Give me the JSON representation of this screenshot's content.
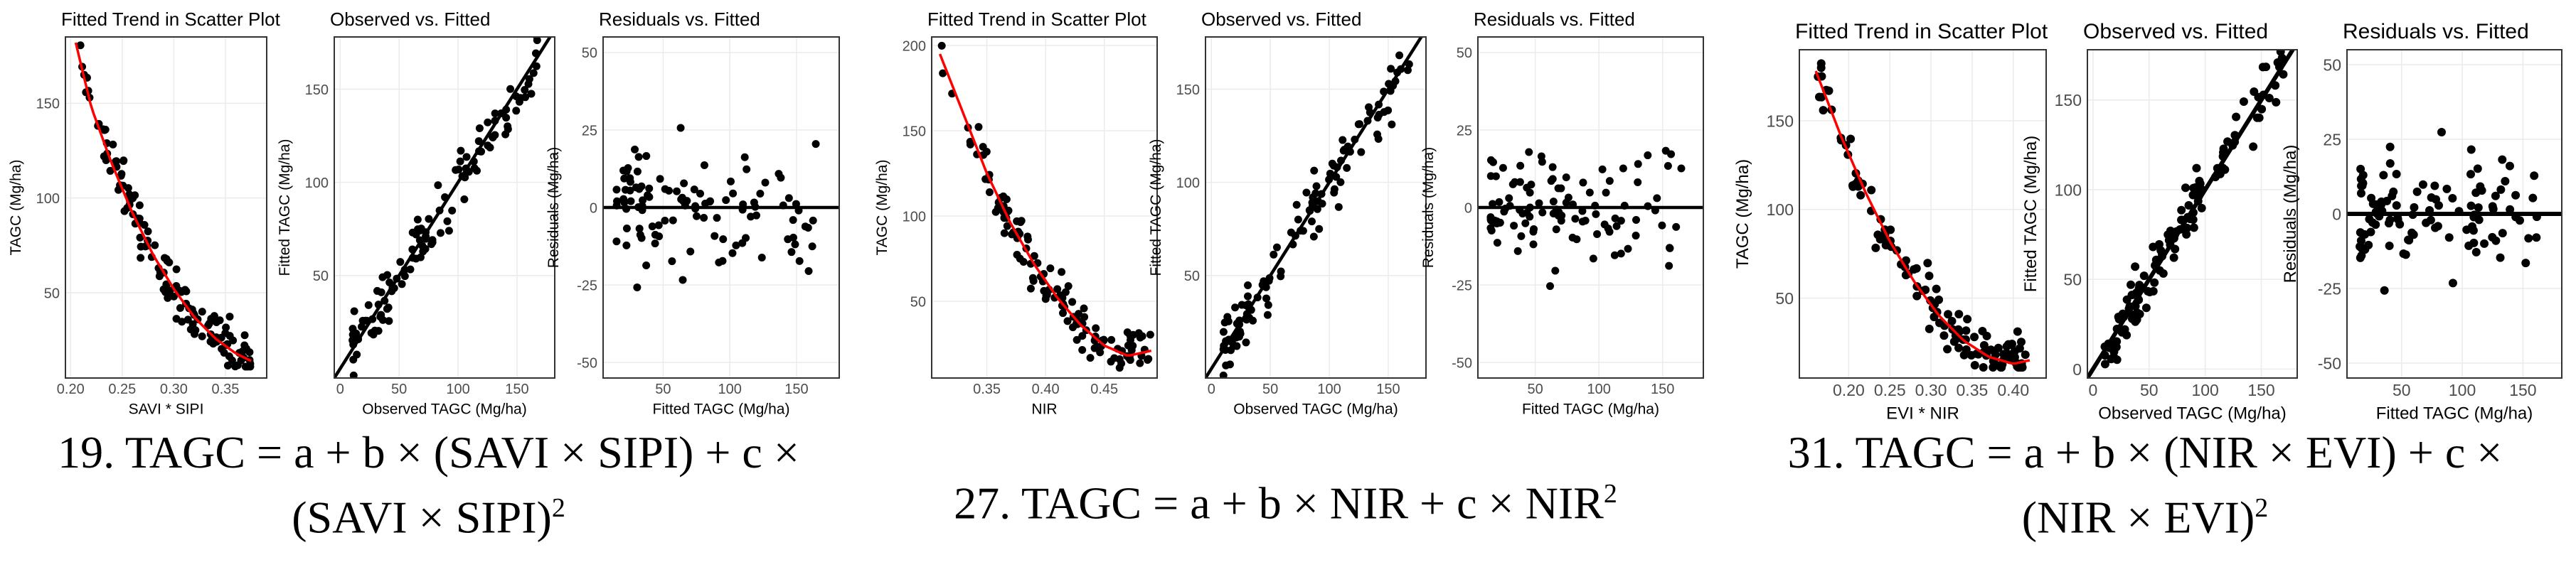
{
  "colors": {
    "points": "#000000",
    "fit_line": "#ff0000",
    "ref_line": "#000000",
    "grid": "#ebebeb",
    "panel_border": "#333333",
    "text": "#000000",
    "tick_text": "#4d4d4d",
    "background": "#ffffff"
  },
  "chart_data": [
    {
      "type": "scatter",
      "title": "Fitted Trend in Scatter Plot",
      "xlabel": "SAVI * SIPI",
      "ylabel": "TAGC (Mg/ha)",
      "xlim": [
        0.195,
        0.39
      ],
      "ylim": [
        5,
        185
      ],
      "xticks": [
        0.2,
        0.25,
        0.3,
        0.35
      ],
      "xtick_labels": [
        "0.20",
        "0.25",
        "0.30",
        "0.35"
      ],
      "yticks": [
        50,
        100,
        150
      ],
      "ytick_labels": [
        "50",
        "100",
        "150"
      ],
      "n_points": 130,
      "fit_curve": {
        "name": "quadratic fit",
        "x": [
          0.205,
          0.22,
          0.24,
          0.26,
          0.28,
          0.3,
          0.32,
          0.34,
          0.36,
          0.375
        ],
        "y": [
          182,
          148,
          118,
          92,
          70,
          52,
          37,
          26,
          18,
          14
        ]
      },
      "ref_line": null
    },
    {
      "type": "scatter",
      "title": "Observed vs. Fitted",
      "xlabel": "Observed TAGC (Mg/ha)",
      "ylabel": "Fitted TAGC (Mg/ha)",
      "xlim": [
        -5,
        182
      ],
      "ylim": [
        -5,
        178
      ],
      "xticks": [
        0,
        50,
        100,
        150
      ],
      "xtick_labels": [
        "0",
        "50",
        "100",
        "150"
      ],
      "yticks": [
        50,
        100,
        150
      ],
      "ytick_labels": [
        "50",
        "100",
        "150"
      ],
      "n_points": 120,
      "fit_curve": null,
      "ref_line": {
        "name": "1:1 line",
        "x": [
          -5,
          180
        ],
        "y": [
          -5,
          180
        ]
      }
    },
    {
      "type": "scatter",
      "title": "Residuals vs. Fitted",
      "xlabel": "Fitted TAGC (Mg/ha)",
      "ylabel": "Residuals (Mg/ha)",
      "xlim": [
        5,
        182
      ],
      "ylim": [
        -55,
        55
      ],
      "xticks": [
        50,
        100,
        150
      ],
      "xtick_labels": [
        "50",
        "100",
        "150"
      ],
      "yticks": [
        -50,
        -25,
        0,
        25,
        50
      ],
      "ytick_labels": [
        "-50",
        "-25",
        "0",
        "25",
        "50"
      ],
      "n_points": 110,
      "fit_curve": null,
      "ref_line": {
        "name": "zero line",
        "x": [
          5,
          182
        ],
        "y": [
          0,
          0
        ]
      }
    },
    {
      "type": "scatter",
      "title": "Fitted Trend in Scatter Plot",
      "xlabel": "NIR",
      "ylabel": "TAGC (Mg/ha)",
      "xlim": [
        0.303,
        0.495
      ],
      "ylim": [
        5,
        205
      ],
      "xticks": [
        0.35,
        0.4,
        0.45
      ],
      "xtick_labels": [
        "0.35",
        "0.40",
        "0.45"
      ],
      "yticks": [
        50,
        100,
        150,
        200
      ],
      "ytick_labels": [
        "50",
        "100",
        "150",
        "200"
      ],
      "n_points": 130,
      "fit_curve": {
        "name": "quadratic fit",
        "x": [
          0.31,
          0.33,
          0.35,
          0.37,
          0.39,
          0.41,
          0.43,
          0.45,
          0.47,
          0.49
        ],
        "y": [
          195,
          160,
          125,
          96,
          72,
          52,
          36,
          24,
          18,
          21
        ]
      },
      "ref_line": null
    },
    {
      "type": "scatter",
      "title": "Observed vs. Fitted",
      "xlabel": "Observed TAGC (Mg/ha)",
      "ylabel": "Fitted TAGC (Mg/ha)",
      "xlim": [
        -5,
        182
      ],
      "ylim": [
        -5,
        178
      ],
      "xticks": [
        0,
        50,
        100,
        150
      ],
      "xtick_labels": [
        "0",
        "50",
        "100",
        "150"
      ],
      "yticks": [
        50,
        100,
        150
      ],
      "ytick_labels": [
        "50",
        "100",
        "150"
      ],
      "n_points": 120,
      "fit_curve": null,
      "ref_line": {
        "name": "1:1 line",
        "x": [
          -5,
          180
        ],
        "y": [
          -5,
          180
        ]
      }
    },
    {
      "type": "scatter",
      "title": "Residuals vs. Fitted",
      "xlabel": "Fitted TAGC (Mg/ha)",
      "ylabel": "Residuals (Mg/ha)",
      "xlim": [
        5,
        182
      ],
      "ylim": [
        -55,
        55
      ],
      "xticks": [
        50,
        100,
        150
      ],
      "xtick_labels": [
        "50",
        "100",
        "150"
      ],
      "yticks": [
        -50,
        -25,
        0,
        25,
        50
      ],
      "ytick_labels": [
        "-50",
        "-25",
        "0",
        "25",
        "50"
      ],
      "n_points": 110,
      "fit_curve": null,
      "ref_line": {
        "name": "zero line",
        "x": [
          5,
          182
        ],
        "y": [
          0,
          0
        ]
      }
    },
    {
      "type": "scatter",
      "title": "Fitted Trend in Scatter Plot",
      "xlabel": "EVI * NIR",
      "ylabel": "TAGC (Mg/ha)",
      "xlim": [
        0.14,
        0.44
      ],
      "ylim": [
        5,
        190
      ],
      "xticks": [
        0.2,
        0.25,
        0.3,
        0.35,
        0.4
      ],
      "xtick_labels": [
        "0.20",
        "0.25",
        "0.30",
        "0.35",
        "0.40"
      ],
      "yticks": [
        50,
        100,
        150
      ],
      "ytick_labels": [
        "50",
        "100",
        "150"
      ],
      "n_points": 130,
      "fit_curve": {
        "name": "quadratic fit",
        "x": [
          0.16,
          0.19,
          0.22,
          0.25,
          0.28,
          0.31,
          0.34,
          0.37,
          0.4,
          0.42
        ],
        "y": [
          178,
          142,
          110,
          82,
          59,
          40,
          26,
          17,
          13,
          15
        ]
      },
      "ref_line": null
    },
    {
      "type": "scatter",
      "title": "Observed vs. Fitted",
      "xlabel": "Observed TAGC (Mg/ha)",
      "ylabel": "Fitted TAGC (Mg/ha)",
      "xlim": [
        -5,
        182
      ],
      "ylim": [
        -5,
        178
      ],
      "xticks": [
        0,
        50,
        100,
        150
      ],
      "xtick_labels": [
        "0",
        "50",
        "100",
        "150"
      ],
      "yticks": [
        0,
        50,
        100,
        150
      ],
      "ytick_labels": [
        "0",
        "50",
        "100",
        "150"
      ],
      "n_points": 120,
      "fit_curve": null,
      "ref_line": {
        "name": "1:1 line",
        "x": [
          -5,
          180
        ],
        "y": [
          -5,
          180
        ]
      }
    },
    {
      "type": "scatter",
      "title": "Residuals vs. Fitted",
      "xlabel": "Fitted TAGC (Mg/ha)",
      "ylabel": "Residuals (Mg/ha)",
      "xlim": [
        5,
        182
      ],
      "ylim": [
        -55,
        55
      ],
      "xticks": [
        50,
        100,
        150
      ],
      "xtick_labels": [
        "50",
        "100",
        "150"
      ],
      "yticks": [
        -50,
        -25,
        0,
        25,
        50
      ],
      "ytick_labels": [
        "-50",
        "-25",
        "0",
        "25",
        "50"
      ],
      "n_points": 110,
      "fit_curve": null,
      "ref_line": {
        "name": "zero line",
        "x": [
          5,
          182
        ],
        "y": [
          0,
          0
        ]
      }
    }
  ],
  "captions": [
    {
      "text": "19. TAGC = a + b × (SAVI × SIPI) + c ×",
      "text2": "(SAVI × SIPI)",
      "sup2": "2"
    },
    {
      "text": "27. TAGC = a + b × NIR + c × NIR",
      "sup": "2"
    },
    {
      "text": "31. TAGC = a + b × (NIR × EVI) + c ×",
      "text2": "(NIR × EVI)",
      "sup2": "2"
    }
  ]
}
